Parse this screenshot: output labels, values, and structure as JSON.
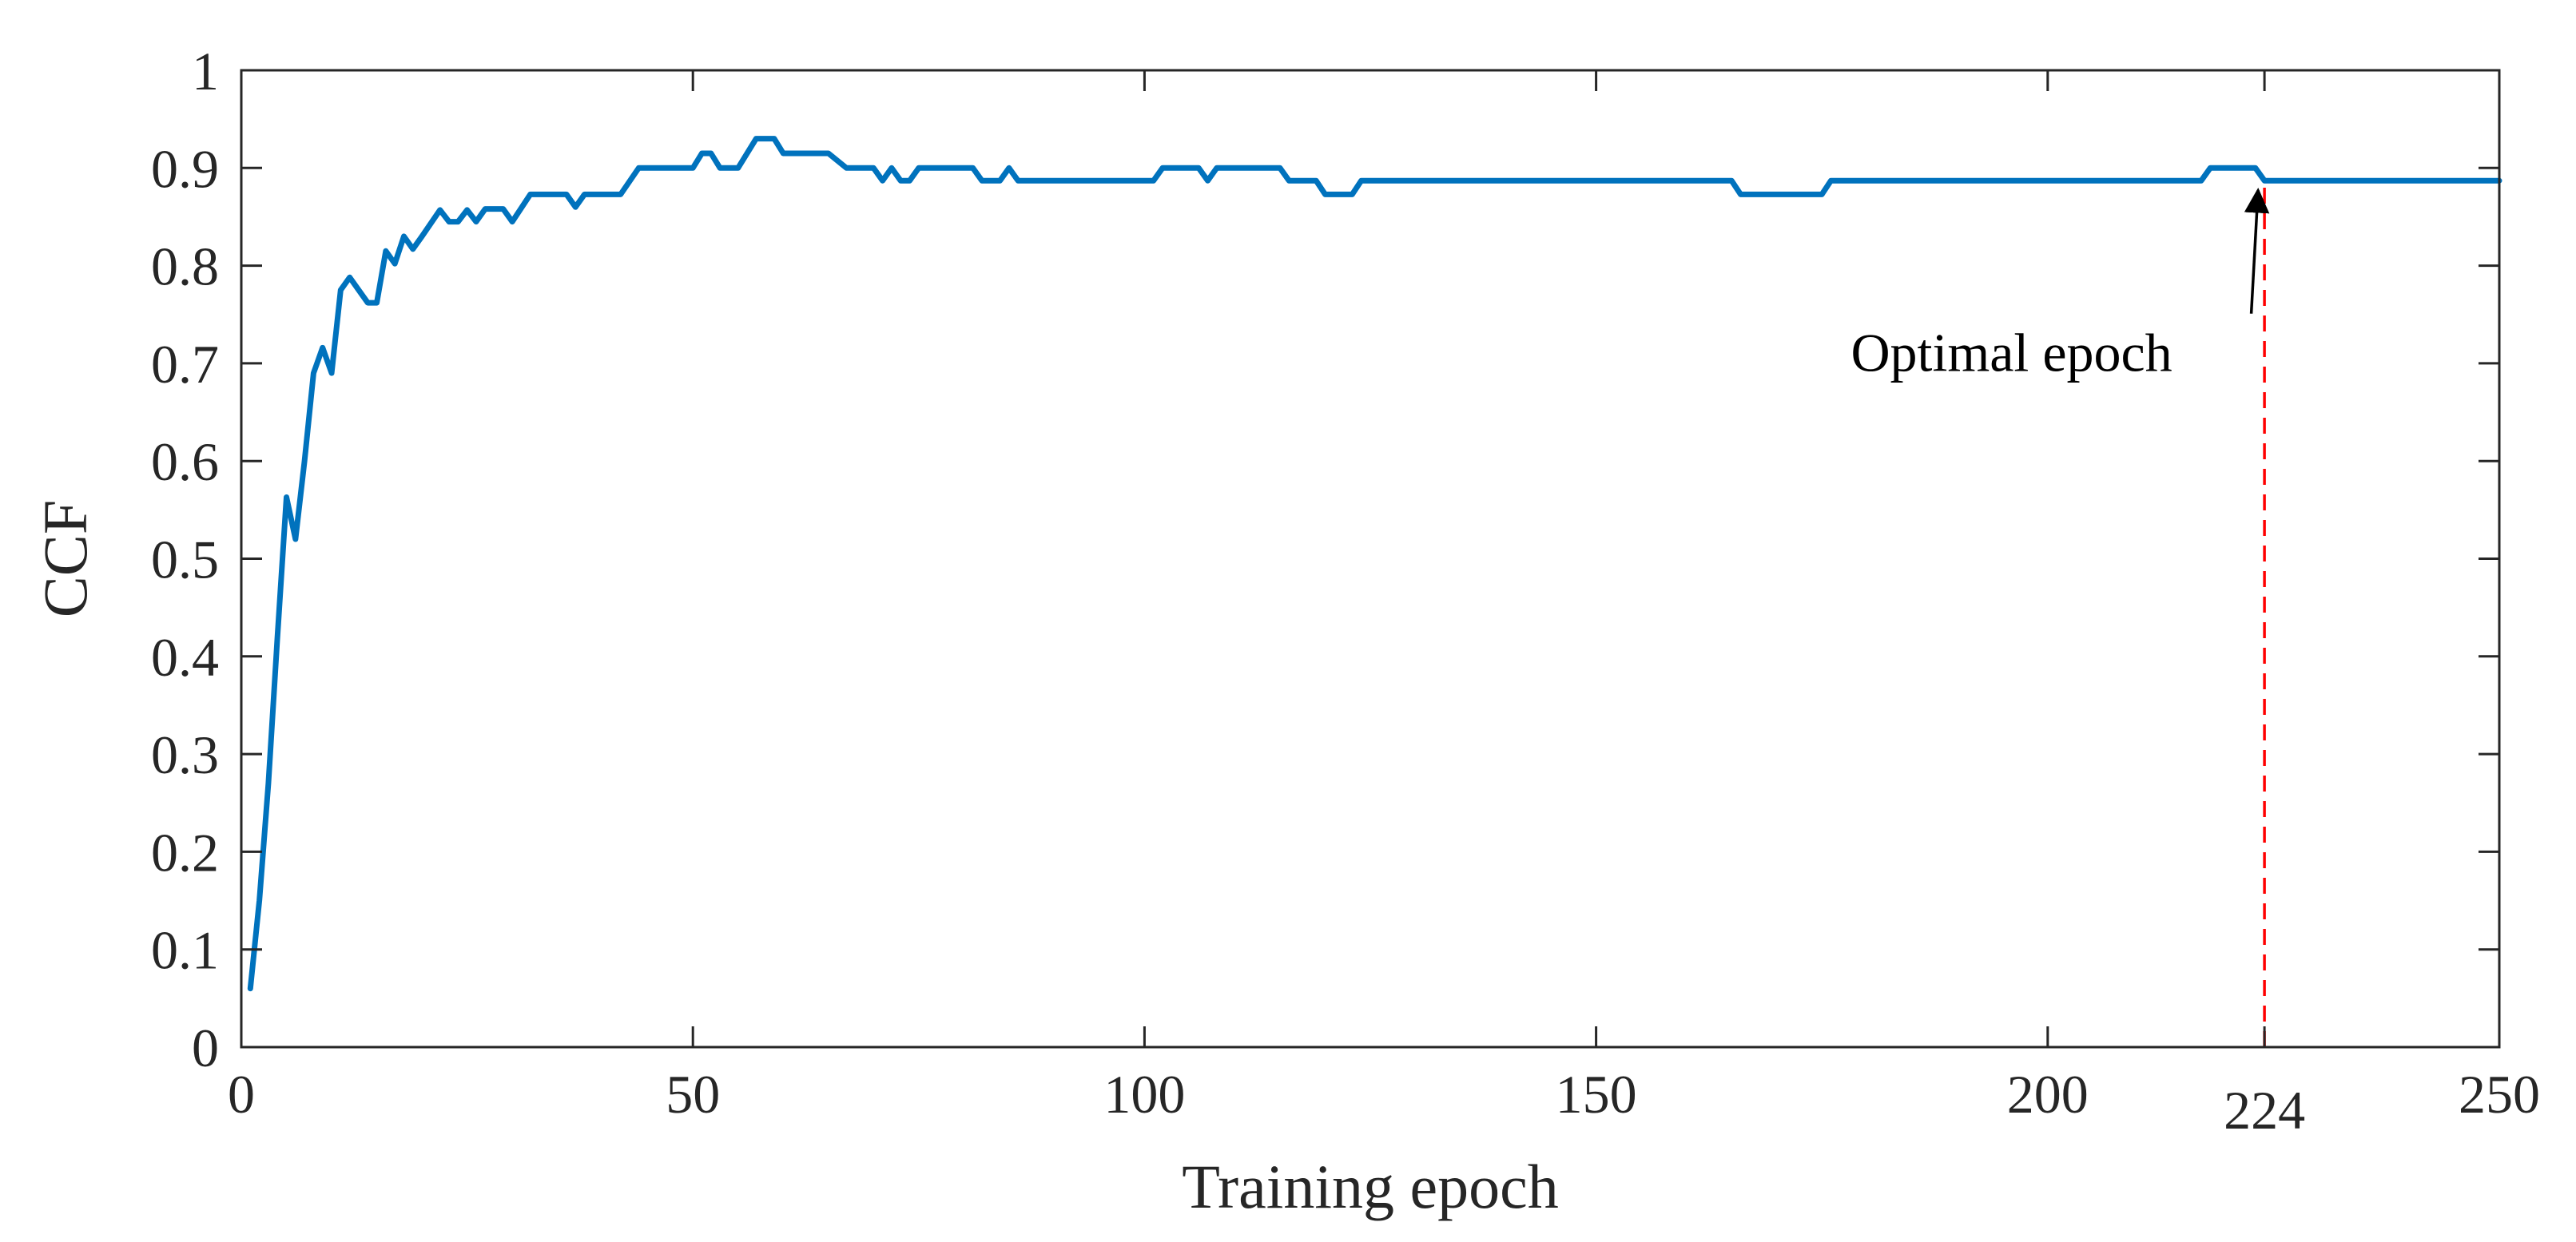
{
  "chart_data": {
    "type": "line",
    "xlabel": "Training epoch",
    "ylabel": "CCF",
    "xlim": [
      0,
      250
    ],
    "ylim": [
      0,
      1
    ],
    "x_ticks": [
      0,
      50,
      100,
      150,
      200,
      224,
      250
    ],
    "x_tick_labels": [
      "0",
      "50",
      "100",
      "150",
      "200",
      "224",
      "250"
    ],
    "y_ticks": [
      0,
      0.1,
      0.2,
      0.3,
      0.4,
      0.5,
      0.6,
      0.7,
      0.8,
      0.9,
      1
    ],
    "y_tick_labels": [
      "0",
      "0.1",
      "0.2",
      "0.3",
      "0.4",
      "0.5",
      "0.6",
      "0.7",
      "0.8",
      "0.9",
      "1"
    ],
    "grid": false,
    "series": [
      {
        "color": "#0072BD",
        "points": [
          [
            1,
            0.06
          ],
          [
            2,
            0.15
          ],
          [
            3,
            0.27
          ],
          [
            4,
            0.42
          ],
          [
            5,
            0.563
          ],
          [
            6,
            0.52
          ],
          [
            7,
            0.6
          ],
          [
            8,
            0.69
          ],
          [
            9,
            0.716
          ],
          [
            10,
            0.69
          ],
          [
            11,
            0.775
          ],
          [
            12,
            0.788
          ],
          [
            13,
            0.775
          ],
          [
            14,
            0.762
          ],
          [
            15,
            0.762
          ],
          [
            16,
            0.815
          ],
          [
            17,
            0.802
          ],
          [
            18,
            0.83
          ],
          [
            19,
            0.817
          ],
          [
            20,
            0.83
          ],
          [
            22,
            0.857
          ],
          [
            23,
            0.845
          ],
          [
            24,
            0.845
          ],
          [
            25,
            0.857
          ],
          [
            26,
            0.845
          ],
          [
            27,
            0.858
          ],
          [
            29,
            0.858
          ],
          [
            30,
            0.845
          ],
          [
            32,
            0.873
          ],
          [
            36,
            0.873
          ],
          [
            37,
            0.86
          ],
          [
            38,
            0.873
          ],
          [
            42,
            0.873
          ],
          [
            44,
            0.9
          ],
          [
            50,
            0.9
          ],
          [
            51,
            0.915
          ],
          [
            52,
            0.915
          ],
          [
            53,
            0.9
          ],
          [
            55,
            0.9
          ],
          [
            57,
            0.93
          ],
          [
            59,
            0.93
          ],
          [
            60,
            0.915
          ],
          [
            65,
            0.915
          ],
          [
            67,
            0.9
          ],
          [
            70,
            0.9
          ],
          [
            71,
            0.887
          ],
          [
            72,
            0.9
          ],
          [
            73,
            0.887
          ],
          [
            74,
            0.887
          ],
          [
            75,
            0.9
          ],
          [
            81,
            0.9
          ],
          [
            82,
            0.887
          ],
          [
            84,
            0.887
          ],
          [
            85,
            0.9
          ],
          [
            86,
            0.887
          ],
          [
            101,
            0.887
          ],
          [
            102,
            0.9
          ],
          [
            106,
            0.9
          ],
          [
            107,
            0.887
          ],
          [
            108,
            0.9
          ],
          [
            115,
            0.9
          ],
          [
            116,
            0.887
          ],
          [
            119,
            0.887
          ],
          [
            120,
            0.873
          ],
          [
            123,
            0.873
          ],
          [
            124,
            0.887
          ],
          [
            165,
            0.887
          ],
          [
            166,
            0.873
          ],
          [
            175,
            0.873
          ],
          [
            176,
            0.887
          ],
          [
            217,
            0.887
          ],
          [
            218,
            0.9
          ],
          [
            223,
            0.9
          ],
          [
            224,
            0.887
          ],
          [
            250,
            0.887
          ]
        ]
      }
    ],
    "annotations": [
      {
        "text": "Optimal epoch",
        "arrow_to": [
          224,
          0.887
        ],
        "text_at": [
          196,
          0.71
        ]
      }
    ],
    "reference_lines": [
      {
        "x": 224,
        "from_y": 0,
        "to_y": 0.887,
        "color": "#FF0000",
        "style": "dashed"
      }
    ]
  }
}
